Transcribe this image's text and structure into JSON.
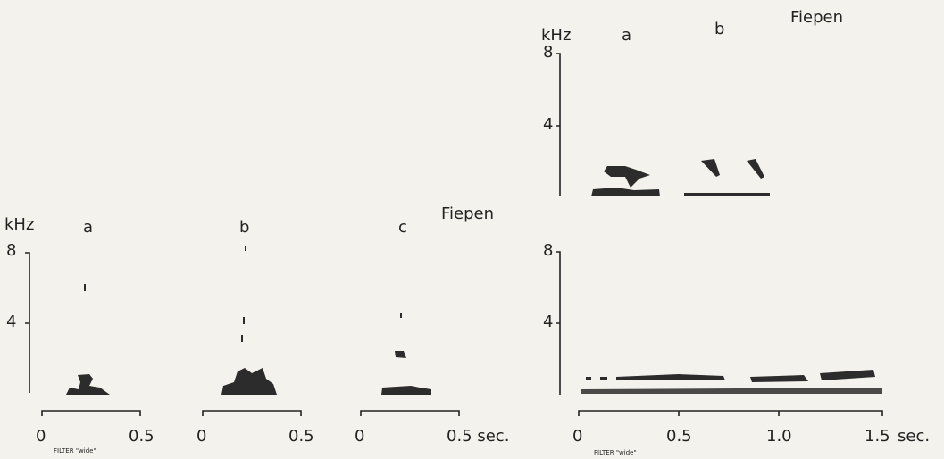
{
  "left": {
    "unit": "kHz",
    "title": "Fiepen",
    "yticks": [
      "8",
      "4"
    ],
    "panels": [
      {
        "label": "a",
        "xticks": [
          "0",
          "0.5"
        ]
      },
      {
        "label": "b",
        "xticks": [
          "0",
          "0.5"
        ]
      },
      {
        "label": "c",
        "xticks": [
          "0",
          "0.5 sec."
        ]
      }
    ],
    "filter": "FILTER \"wide\""
  },
  "right": {
    "unit": "kHz",
    "title": "Fiepen",
    "labels": [
      "a",
      "b"
    ],
    "top_yticks": [
      "8",
      "4"
    ],
    "bottom_yticks": [
      "8",
      "4"
    ],
    "xticks": [
      "0",
      "0.5",
      "1.0",
      "1.5"
    ],
    "x_unit": "sec.",
    "filter": "FILTER \"wide\""
  }
}
